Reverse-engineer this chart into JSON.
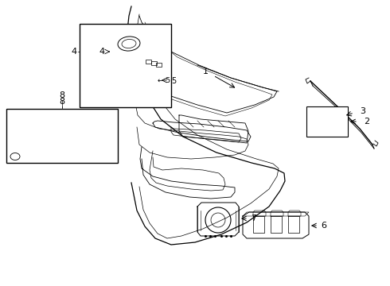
{
  "bg_color": "#ffffff",
  "lc": "#000000",
  "lw": 0.7,
  "fig_w": 4.9,
  "fig_h": 3.6,
  "dpi": 100
}
